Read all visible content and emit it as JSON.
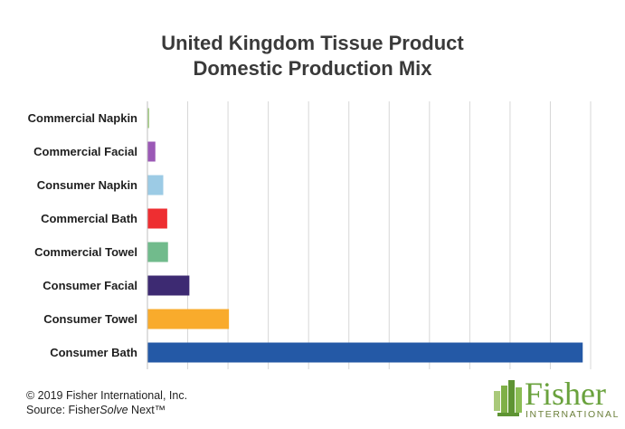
{
  "chart_data": {
    "type": "bar",
    "orientation": "horizontal",
    "title_line1": "United Kingdom Tissue Product",
    "title_line2": "Domestic Production Mix",
    "categories": [
      "Commercial Napkin",
      "Commercial Facial",
      "Consumer Napkin",
      "Commercial Bath",
      "Commercial Towel",
      "Consumer Facial",
      "Consumer Towel",
      "Consumer Bath"
    ],
    "values": [
      0.2,
      1.0,
      2.0,
      2.5,
      2.6,
      5.3,
      10.3,
      55.0
    ],
    "colors": [
      "#a8cf8a",
      "#9b59b6",
      "#9ccbe5",
      "#ee2e31",
      "#71bb8c",
      "#3d2a72",
      "#f9ab2c",
      "#2459a6"
    ],
    "xlim": [
      0,
      56
    ],
    "grid": true,
    "xlabel": "",
    "ylabel": ""
  },
  "footer": {
    "copyright": "© 2019 Fisher International, Inc.",
    "source_prefix": "Source: Fisher",
    "source_italic": "Solve",
    "source_suffix": " Next™"
  },
  "logo": {
    "word": "Fisher",
    "sub": "INTERNATIONAL"
  }
}
